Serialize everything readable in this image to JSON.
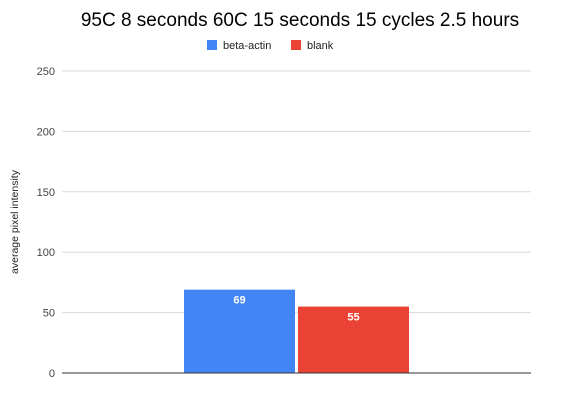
{
  "chart_data": {
    "type": "bar",
    "title": "95C 8 seconds 60C 15 seconds  15 cycles 2.5 hours",
    "categories": [
      ""
    ],
    "series": [
      {
        "name": "beta-actin",
        "values": [
          69
        ],
        "color": "#4285f4"
      },
      {
        "name": "blank",
        "values": [
          55
        ],
        "color": "#ea4335"
      }
    ],
    "xlabel": "",
    "ylabel": "average pixel intensity",
    "ylim": [
      0,
      250
    ],
    "yticks": [
      "0",
      "50",
      "100",
      "150",
      "200",
      "250"
    ],
    "data_labels": [
      "69",
      "55"
    ],
    "grid": true,
    "legend_position": "top"
  }
}
